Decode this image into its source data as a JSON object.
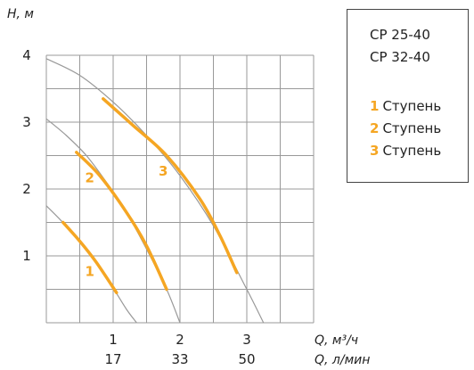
{
  "chart_data": {
    "type": "line",
    "ylabel": "H, м",
    "xlabel_primary": "Q, м³/ч",
    "xlabel_secondary": "Q, л/мин",
    "yticks": [
      "1",
      "2",
      "3",
      "4"
    ],
    "xticks_primary": [
      "1",
      "2",
      "3"
    ],
    "xticks_secondary": [
      "17",
      "33",
      "50"
    ],
    "xlim": [
      0,
      4
    ],
    "ylim": [
      0,
      4
    ],
    "grid": true,
    "colors": {
      "curve": "#f5a623",
      "grey": "#999999",
      "grid": "#999999"
    },
    "series": [
      {
        "name": "1",
        "label_at": [
          0.65,
          0.7
        ],
        "x": [
          0.0,
          0.2,
          0.4,
          0.6,
          0.8,
          1.0,
          1.2,
          1.35
        ],
        "y": [
          1.75,
          1.55,
          1.33,
          1.09,
          0.82,
          0.52,
          0.2,
          0.0
        ],
        "x_active": [
          0.25,
          0.5,
          0.75,
          1.05
        ],
        "y_active": [
          1.5,
          1.22,
          0.9,
          0.45
        ]
      },
      {
        "name": "2",
        "label_at": [
          0.65,
          2.1
        ],
        "x": [
          0.0,
          0.3,
          0.6,
          0.9,
          1.2,
          1.5,
          1.8,
          2.0
        ],
        "y": [
          3.05,
          2.8,
          2.5,
          2.1,
          1.65,
          1.1,
          0.5,
          0.0
        ],
        "x_active": [
          0.45,
          0.8,
          1.2,
          1.5,
          1.8
        ],
        "y_active": [
          2.55,
          2.2,
          1.65,
          1.15,
          0.5
        ]
      },
      {
        "name": "3",
        "label_at": [
          1.75,
          2.2
        ],
        "x": [
          0.0,
          0.5,
          1.0,
          1.5,
          2.0,
          2.5,
          3.0,
          3.25
        ],
        "y": [
          3.95,
          3.7,
          3.3,
          2.8,
          2.2,
          1.45,
          0.5,
          0.0
        ],
        "x_active": [
          0.85,
          1.3,
          1.8,
          2.3,
          2.6,
          2.85
        ],
        "y_active": [
          3.35,
          2.95,
          2.5,
          1.85,
          1.3,
          0.75
        ]
      }
    ]
  },
  "legend": {
    "models": [
      "CP 25-40",
      "CP 32-40"
    ],
    "stages": [
      {
        "num": "1",
        "label": "Ступень"
      },
      {
        "num": "2",
        "label": "Ступень"
      },
      {
        "num": "3",
        "label": "Ступень"
      }
    ]
  }
}
